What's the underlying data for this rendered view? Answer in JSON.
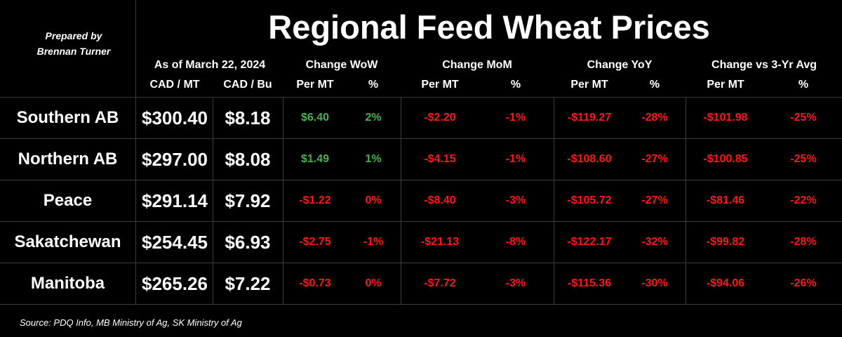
{
  "header": {
    "prepared_by": "Prepared by\nBrennan Turner",
    "title": "Regional Feed Wheat Prices",
    "as_of": "As of March 22, 2024",
    "groups": [
      "Change WoW",
      "Change MoM",
      "Change YoY",
      "Change vs 3-Yr Avg"
    ],
    "price_units": [
      "CAD / MT",
      "CAD / Bu"
    ],
    "sub_labels": [
      "Per MT",
      "%"
    ]
  },
  "colors": {
    "positive": "#4caf50",
    "negative": "#ff1a1a",
    "grid": "#3c3c3c",
    "background": "#000000"
  },
  "chart_data": {
    "type": "table",
    "title": "Regional Feed Wheat Prices",
    "subtitle": "As of March 22, 2024",
    "columns": [
      "",
      "CAD / MT",
      "CAD / Bu",
      "Change WoW Per MT",
      "Change WoW %",
      "Change MoM Per MT",
      "Change MoM %",
      "Change YoY Per MT",
      "Change YoY %",
      "Change vs 3-Yr Avg Per MT",
      "Change vs 3-Yr Avg %"
    ],
    "rows": [
      {
        "region": "Southern AB",
        "cad_mt": "$300.40",
        "cad_bu": "$8.18",
        "changes": [
          {
            "mt": "$6.40",
            "pct": "2%"
          },
          {
            "mt": "-$2.20",
            "pct": "-1%"
          },
          {
            "mt": "-$119.27",
            "pct": "-28%"
          },
          {
            "mt": "-$101.98",
            "pct": "-25%"
          }
        ]
      },
      {
        "region": "Northern AB",
        "cad_mt": "$297.00",
        "cad_bu": "$8.08",
        "changes": [
          {
            "mt": "$1.49",
            "pct": "1%"
          },
          {
            "mt": "-$4.15",
            "pct": "-1%"
          },
          {
            "mt": "-$108.60",
            "pct": "-27%"
          },
          {
            "mt": "-$100.85",
            "pct": "-25%"
          }
        ]
      },
      {
        "region": "Peace",
        "cad_mt": "$291.14",
        "cad_bu": "$7.92",
        "changes": [
          {
            "mt": "-$1.22",
            "pct": "0%"
          },
          {
            "mt": "-$8.40",
            "pct": "-3%"
          },
          {
            "mt": "-$105.72",
            "pct": "-27%"
          },
          {
            "mt": "-$81.46",
            "pct": "-22%"
          }
        ]
      },
      {
        "region": "Sakatchewan",
        "cad_mt": "$254.45",
        "cad_bu": "$6.93",
        "changes": [
          {
            "mt": "-$2.75",
            "pct": "-1%"
          },
          {
            "mt": "-$21.13",
            "pct": "-8%"
          },
          {
            "mt": "-$122.17",
            "pct": "-32%"
          },
          {
            "mt": "-$99.82",
            "pct": "-28%"
          }
        ]
      },
      {
        "region": "Manitoba",
        "cad_mt": "$265.26",
        "cad_bu": "$7.22",
        "changes": [
          {
            "mt": "-$0.73",
            "pct": "0%"
          },
          {
            "mt": "-$7.72",
            "pct": "-3%"
          },
          {
            "mt": "-$115.36",
            "pct": "-30%"
          },
          {
            "mt": "-$94.06",
            "pct": "-26%"
          }
        ]
      }
    ]
  },
  "footer": {
    "source": "Source: PDQ Info, MB Ministry of Ag, SK Ministry of Ag"
  }
}
